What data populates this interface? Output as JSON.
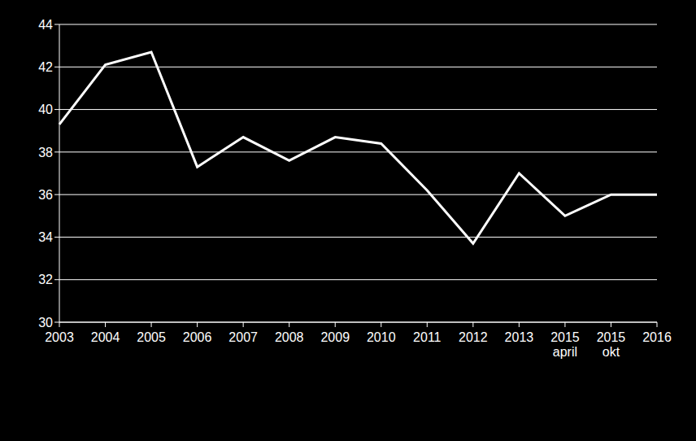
{
  "chart_data": {
    "type": "line",
    "categories": [
      "2003",
      "2004",
      "2005",
      "2006",
      "2007",
      "2008",
      "2009",
      "2010",
      "2011",
      "2012",
      "2013",
      "2015\napril",
      "2015\nokt",
      "2016"
    ],
    "values": [
      39.3,
      42.1,
      42.7,
      37.3,
      38.7,
      37.6,
      38.7,
      38.4,
      36.2,
      33.7,
      37.0,
      35.0,
      36.0,
      36.0
    ],
    "color": "#ffffff",
    "ylim": [
      30,
      44
    ],
    "yticks": [
      30,
      32,
      34,
      36,
      38,
      40,
      42,
      44
    ],
    "grid": true
  }
}
